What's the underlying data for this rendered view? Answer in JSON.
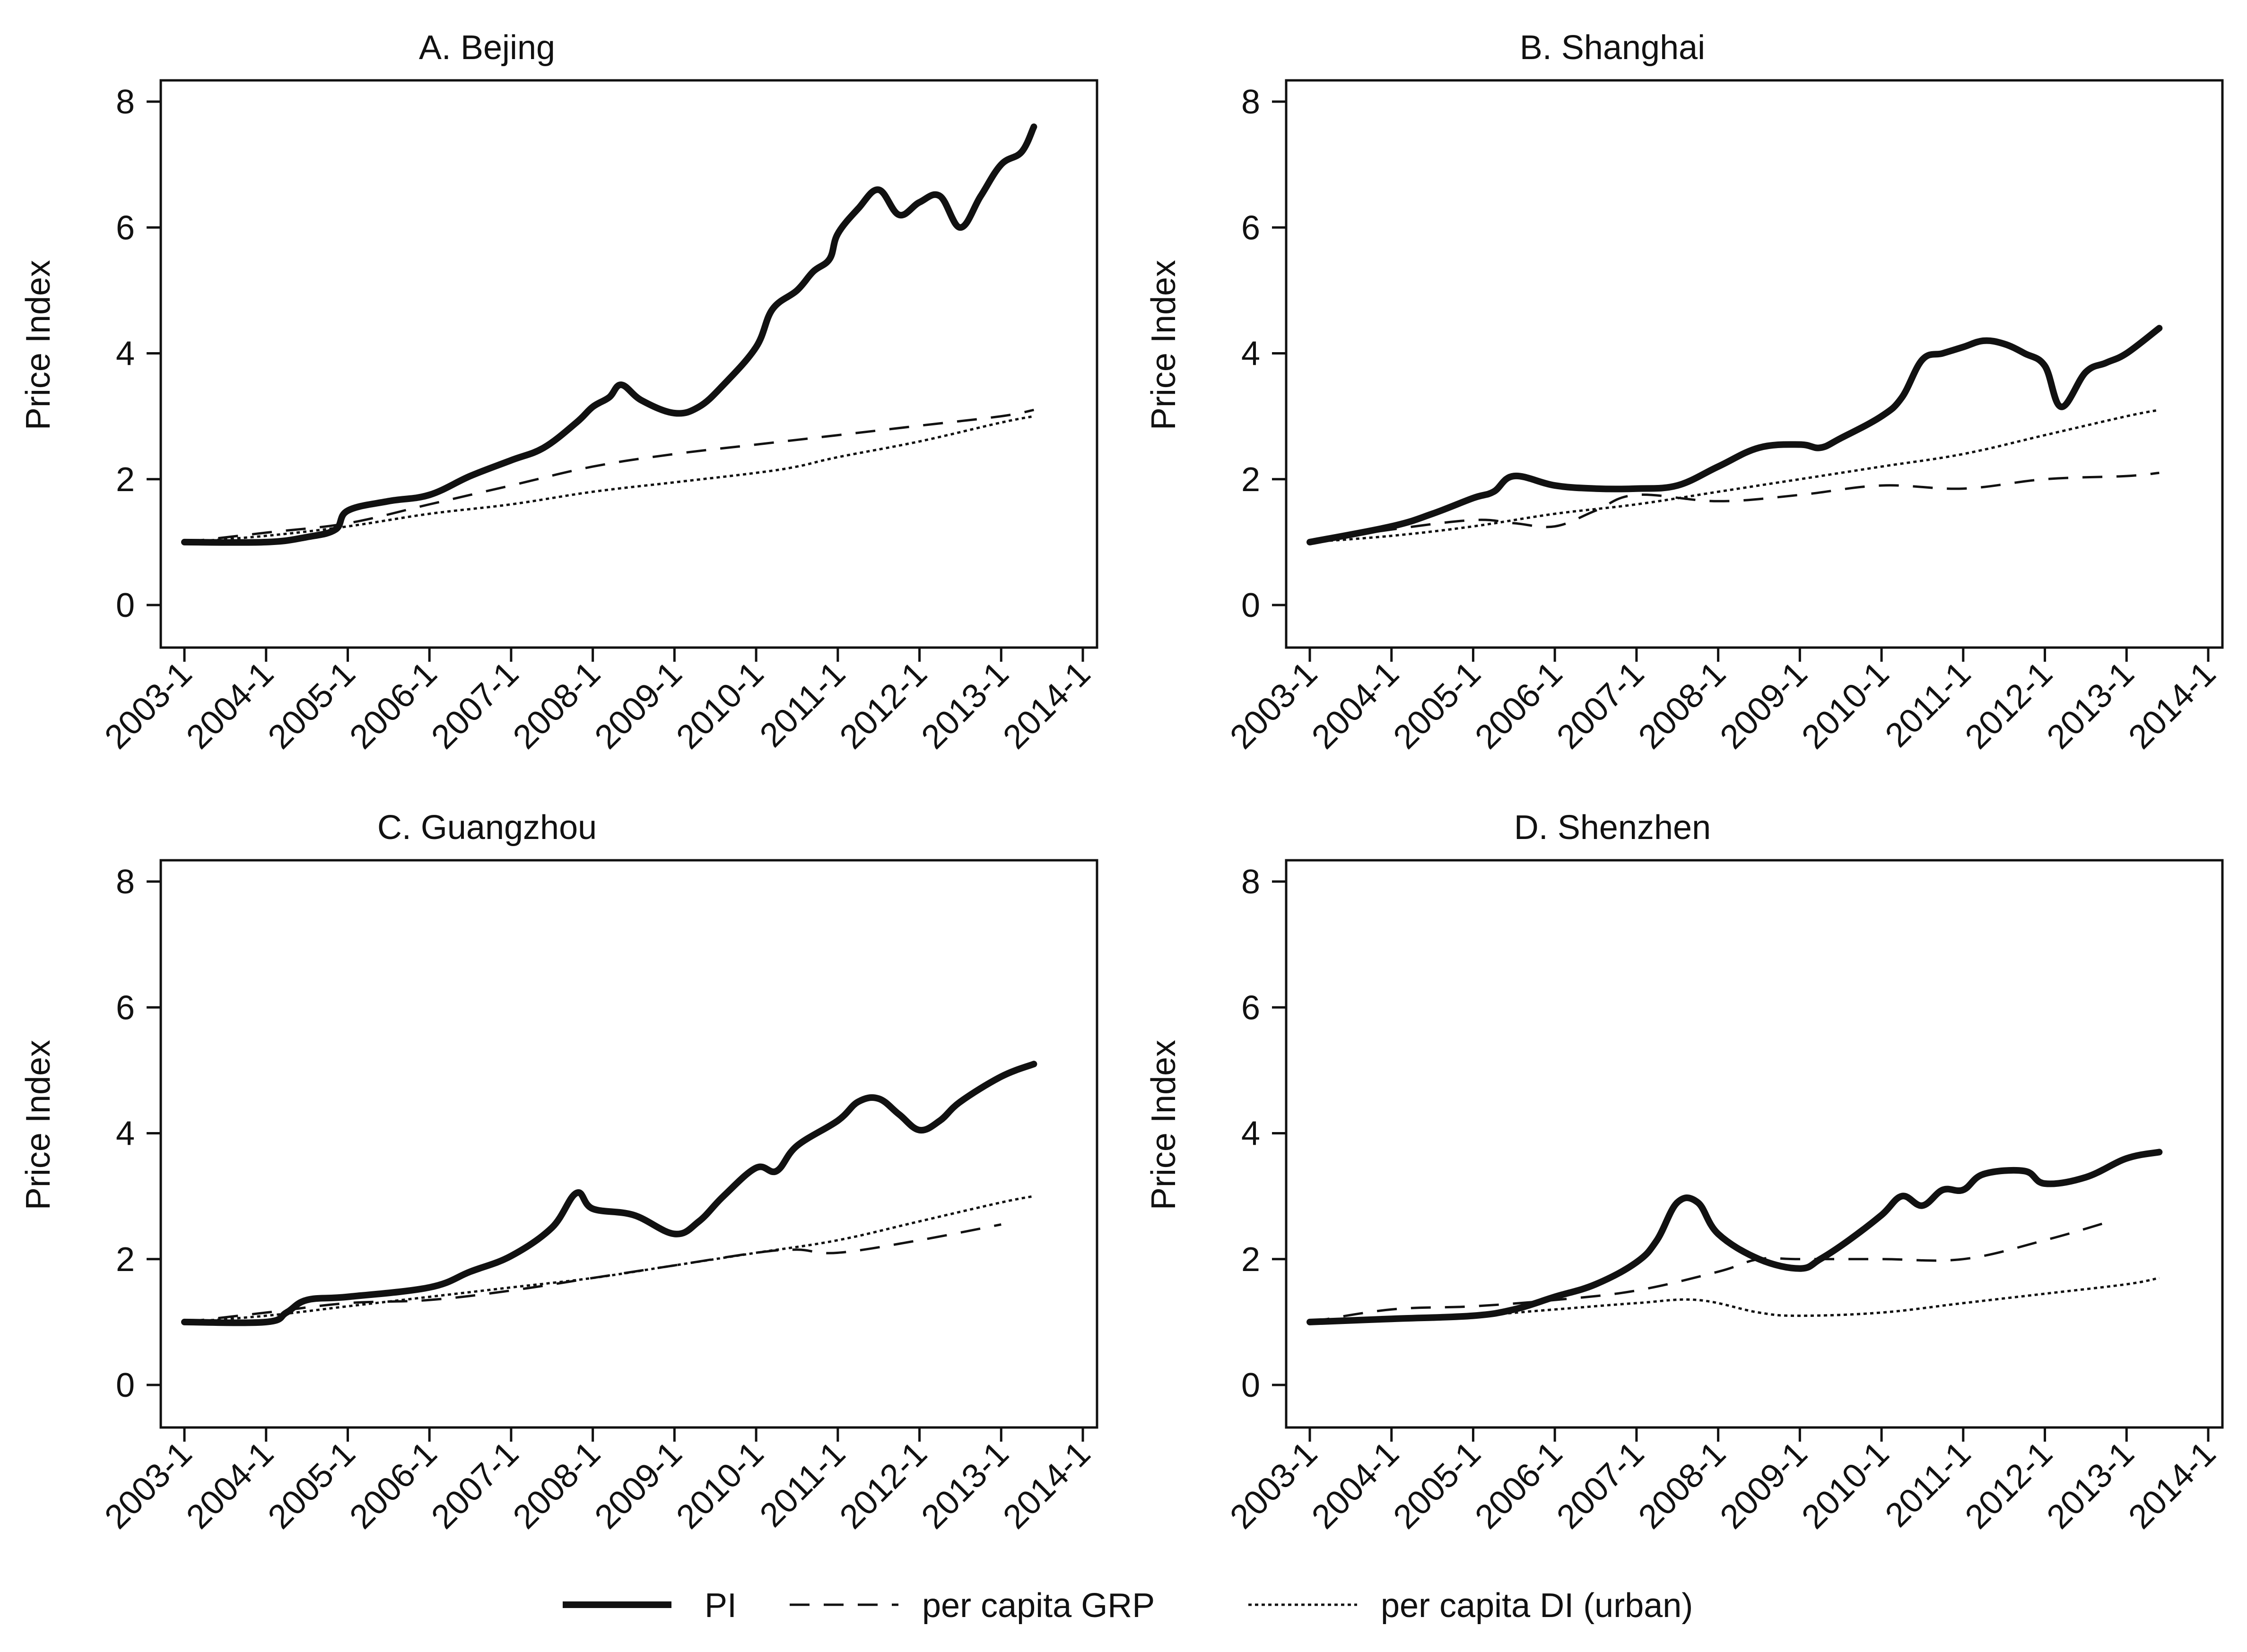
{
  "figure": {
    "legend": [
      {
        "label": "PI",
        "style": "solid"
      },
      {
        "label": "per capita GRP",
        "style": "dashed"
      },
      {
        "label": "per capita DI (urban)",
        "style": "dotted"
      }
    ]
  },
  "chart_data": [
    {
      "type": "line",
      "title": "A. Bejing",
      "ylabel": "Price Index",
      "xlabel": "",
      "ylim": [
        0,
        8
      ],
      "xlim": [
        2003.0,
        2014.0
      ],
      "yticks": [
        "0",
        "2",
        "4",
        "6",
        "8"
      ],
      "xticks": [
        "2003-1",
        "2004-1",
        "2005-1",
        "2006-1",
        "2007-1",
        "2008-1",
        "2009-1",
        "2010-1",
        "2011-1",
        "2012-1",
        "2013-1",
        "2014-1"
      ],
      "grid": false,
      "legend": "bottom",
      "series": [
        {
          "name": "PI",
          "style": "solid",
          "points": [
            [
              2003.0,
              1.0
            ],
            [
              2004.0,
              1.0
            ],
            [
              2004.5,
              1.08
            ],
            [
              2004.85,
              1.2
            ],
            [
              2005.0,
              1.5
            ],
            [
              2005.5,
              1.65
            ],
            [
              2006.0,
              1.75
            ],
            [
              2006.5,
              2.05
            ],
            [
              2007.0,
              2.3
            ],
            [
              2007.4,
              2.5
            ],
            [
              2007.8,
              2.9
            ],
            [
              2008.0,
              3.15
            ],
            [
              2008.2,
              3.3
            ],
            [
              2008.35,
              3.5
            ],
            [
              2008.6,
              3.25
            ],
            [
              2009.0,
              3.05
            ],
            [
              2009.3,
              3.15
            ],
            [
              2009.6,
              3.5
            ],
            [
              2010.0,
              4.1
            ],
            [
              2010.2,
              4.7
            ],
            [
              2010.5,
              5.0
            ],
            [
              2010.7,
              5.3
            ],
            [
              2010.9,
              5.5
            ],
            [
              2011.0,
              5.9
            ],
            [
              2011.25,
              6.3
            ],
            [
              2011.5,
              6.6
            ],
            [
              2011.75,
              6.2
            ],
            [
              2012.0,
              6.4
            ],
            [
              2012.25,
              6.5
            ],
            [
              2012.5,
              6.0
            ],
            [
              2012.75,
              6.5
            ],
            [
              2013.0,
              7.0
            ],
            [
              2013.25,
              7.2
            ],
            [
              2013.4,
              7.6
            ]
          ]
        },
        {
          "name": "per capita GRP",
          "style": "dashed",
          "points": [
            [
              2003.0,
              1.0
            ],
            [
              2004.0,
              1.15
            ],
            [
              2005.0,
              1.3
            ],
            [
              2006.0,
              1.6
            ],
            [
              2007.0,
              1.9
            ],
            [
              2008.0,
              2.2
            ],
            [
              2009.0,
              2.4
            ],
            [
              2010.0,
              2.55
            ],
            [
              2011.0,
              2.7
            ],
            [
              2012.0,
              2.85
            ],
            [
              2013.0,
              3.0
            ],
            [
              2013.4,
              3.1
            ]
          ]
        },
        {
          "name": "per capita DI (urban)",
          "style": "dotted",
          "points": [
            [
              2003.0,
              1.0
            ],
            [
              2004.0,
              1.1
            ],
            [
              2005.0,
              1.25
            ],
            [
              2006.0,
              1.45
            ],
            [
              2007.0,
              1.6
            ],
            [
              2008.0,
              1.8
            ],
            [
              2009.0,
              1.95
            ],
            [
              2010.0,
              2.1
            ],
            [
              2010.5,
              2.2
            ],
            [
              2011.0,
              2.35
            ],
            [
              2012.0,
              2.6
            ],
            [
              2013.0,
              2.9
            ],
            [
              2013.4,
              3.0
            ]
          ]
        }
      ]
    },
    {
      "type": "line",
      "title": "B. Shanghai",
      "ylabel": "Price Index",
      "xlabel": "",
      "ylim": [
        0,
        8
      ],
      "xlim": [
        2003.0,
        2014.0
      ],
      "yticks": [
        "0",
        "2",
        "4",
        "6",
        "8"
      ],
      "xticks": [
        "2003-1",
        "2004-1",
        "2005-1",
        "2006-1",
        "2007-1",
        "2008-1",
        "2009-1",
        "2010-1",
        "2011-1",
        "2012-1",
        "2013-1",
        "2014-1"
      ],
      "grid": false,
      "legend": "bottom",
      "series": [
        {
          "name": "PI",
          "style": "solid",
          "points": [
            [
              2003.0,
              1.0
            ],
            [
              2004.0,
              1.25
            ],
            [
              2004.5,
              1.45
            ],
            [
              2005.0,
              1.7
            ],
            [
              2005.25,
              1.8
            ],
            [
              2005.5,
              2.05
            ],
            [
              2006.0,
              1.9
            ],
            [
              2006.5,
              1.85
            ],
            [
              2007.0,
              1.85
            ],
            [
              2007.5,
              1.9
            ],
            [
              2008.0,
              2.2
            ],
            [
              2008.5,
              2.5
            ],
            [
              2009.0,
              2.55
            ],
            [
              2009.25,
              2.5
            ],
            [
              2009.5,
              2.65
            ],
            [
              2010.0,
              3.0
            ],
            [
              2010.25,
              3.3
            ],
            [
              2010.5,
              3.9
            ],
            [
              2010.75,
              4.0
            ],
            [
              2011.0,
              4.1
            ],
            [
              2011.25,
              4.2
            ],
            [
              2011.5,
              4.15
            ],
            [
              2011.75,
              4.0
            ],
            [
              2012.0,
              3.8
            ],
            [
              2012.2,
              3.15
            ],
            [
              2012.5,
              3.7
            ],
            [
              2012.75,
              3.85
            ],
            [
              2013.0,
              4.0
            ],
            [
              2013.4,
              4.4
            ]
          ]
        },
        {
          "name": "per capita GRP",
          "style": "dashed",
          "points": [
            [
              2003.0,
              1.0
            ],
            [
              2004.0,
              1.2
            ],
            [
              2005.0,
              1.35
            ],
            [
              2005.5,
              1.3
            ],
            [
              2006.0,
              1.25
            ],
            [
              2006.5,
              1.5
            ],
            [
              2007.0,
              1.75
            ],
            [
              2008.0,
              1.65
            ],
            [
              2009.0,
              1.75
            ],
            [
              2010.0,
              1.9
            ],
            [
              2011.0,
              1.85
            ],
            [
              2012.0,
              2.0
            ],
            [
              2013.0,
              2.05
            ],
            [
              2013.4,
              2.1
            ]
          ]
        },
        {
          "name": "per capita DI (urban)",
          "style": "dotted",
          "points": [
            [
              2003.0,
              1.0
            ],
            [
              2004.0,
              1.1
            ],
            [
              2005.0,
              1.25
            ],
            [
              2006.0,
              1.45
            ],
            [
              2007.0,
              1.6
            ],
            [
              2008.0,
              1.8
            ],
            [
              2009.0,
              2.0
            ],
            [
              2010.0,
              2.2
            ],
            [
              2011.0,
              2.4
            ],
            [
              2012.0,
              2.7
            ],
            [
              2013.0,
              3.0
            ],
            [
              2013.4,
              3.1
            ]
          ]
        }
      ]
    },
    {
      "type": "line",
      "title": "C. Guangzhou",
      "ylabel": "Price Index",
      "xlabel": "",
      "ylim": [
        0,
        8
      ],
      "xlim": [
        2003.0,
        2014.0
      ],
      "yticks": [
        "0",
        "2",
        "4",
        "6",
        "8"
      ],
      "xticks": [
        "2003-1",
        "2004-1",
        "2005-1",
        "2006-1",
        "2007-1",
        "2008-1",
        "2009-1",
        "2010-1",
        "2011-1",
        "2012-1",
        "2013-1",
        "2014-1"
      ],
      "grid": false,
      "legend": "bottom",
      "series": [
        {
          "name": "PI",
          "style": "solid",
          "points": [
            [
              2003.0,
              1.0
            ],
            [
              2004.0,
              1.0
            ],
            [
              2004.25,
              1.15
            ],
            [
              2004.5,
              1.35
            ],
            [
              2005.0,
              1.4
            ],
            [
              2006.0,
              1.55
            ],
            [
              2006.5,
              1.8
            ],
            [
              2007.0,
              2.05
            ],
            [
              2007.5,
              2.5
            ],
            [
              2007.8,
              3.05
            ],
            [
              2008.0,
              2.8
            ],
            [
              2008.5,
              2.7
            ],
            [
              2009.0,
              2.4
            ],
            [
              2009.3,
              2.6
            ],
            [
              2009.6,
              3.0
            ],
            [
              2010.0,
              3.45
            ],
            [
              2010.25,
              3.4
            ],
            [
              2010.5,
              3.8
            ],
            [
              2011.0,
              4.2
            ],
            [
              2011.25,
              4.5
            ],
            [
              2011.5,
              4.55
            ],
            [
              2011.75,
              4.3
            ],
            [
              2012.0,
              4.05
            ],
            [
              2012.25,
              4.2
            ],
            [
              2012.5,
              4.5
            ],
            [
              2013.0,
              4.9
            ],
            [
              2013.4,
              5.1
            ]
          ]
        },
        {
          "name": "per capita GRP",
          "style": "dashed",
          "points": [
            [
              2003.0,
              1.0
            ],
            [
              2004.0,
              1.15
            ],
            [
              2005.0,
              1.3
            ],
            [
              2006.0,
              1.35
            ],
            [
              2007.0,
              1.5
            ],
            [
              2008.0,
              1.7
            ],
            [
              2009.0,
              1.9
            ],
            [
              2010.0,
              2.1
            ],
            [
              2010.5,
              2.15
            ],
            [
              2011.0,
              2.1
            ],
            [
              2012.0,
              2.3
            ],
            [
              2013.0,
              2.55
            ]
          ]
        },
        {
          "name": "per capita DI (urban)",
          "style": "dotted",
          "points": [
            [
              2003.0,
              1.0
            ],
            [
              2004.0,
              1.1
            ],
            [
              2005.0,
              1.25
            ],
            [
              2006.0,
              1.4
            ],
            [
              2007.0,
              1.55
            ],
            [
              2008.0,
              1.7
            ],
            [
              2009.0,
              1.9
            ],
            [
              2010.0,
              2.1
            ],
            [
              2011.0,
              2.3
            ],
            [
              2012.0,
              2.6
            ],
            [
              2013.0,
              2.9
            ],
            [
              2013.4,
              3.0
            ]
          ]
        }
      ]
    },
    {
      "type": "line",
      "title": "D. Shenzhen",
      "ylabel": "Price Index",
      "xlabel": "",
      "ylim": [
        0,
        8
      ],
      "xlim": [
        2003.0,
        2014.0
      ],
      "yticks": [
        "0",
        "2",
        "4",
        "6",
        "8"
      ],
      "xticks": [
        "2003-1",
        "2004-1",
        "2005-1",
        "2006-1",
        "2007-1",
        "2008-1",
        "2009-1",
        "2010-1",
        "2011-1",
        "2012-1",
        "2013-1",
        "2014-1"
      ],
      "grid": false,
      "legend": "bottom",
      "series": [
        {
          "name": "PI",
          "style": "solid",
          "points": [
            [
              2003.0,
              1.0
            ],
            [
              2004.0,
              1.05
            ],
            [
              2005.0,
              1.1
            ],
            [
              2005.5,
              1.2
            ],
            [
              2006.0,
              1.4
            ],
            [
              2006.5,
              1.6
            ],
            [
              2007.0,
              1.95
            ],
            [
              2007.25,
              2.3
            ],
            [
              2007.5,
              2.9
            ],
            [
              2007.75,
              2.9
            ],
            [
              2008.0,
              2.4
            ],
            [
              2008.5,
              2.0
            ],
            [
              2009.0,
              1.85
            ],
            [
              2009.25,
              2.0
            ],
            [
              2009.6,
              2.3
            ],
            [
              2010.0,
              2.7
            ],
            [
              2010.25,
              3.0
            ],
            [
              2010.5,
              2.85
            ],
            [
              2010.75,
              3.1
            ],
            [
              2011.0,
              3.1
            ],
            [
              2011.25,
              3.35
            ],
            [
              2011.75,
              3.4
            ],
            [
              2012.0,
              3.2
            ],
            [
              2012.5,
              3.3
            ],
            [
              2013.0,
              3.6
            ],
            [
              2013.4,
              3.7
            ]
          ]
        },
        {
          "name": "per capita GRP",
          "style": "dashed",
          "points": [
            [
              2003.0,
              1.0
            ],
            [
              2004.0,
              1.2
            ],
            [
              2005.0,
              1.25
            ],
            [
              2006.0,
              1.35
            ],
            [
              2007.0,
              1.5
            ],
            [
              2008.0,
              1.8
            ],
            [
              2008.5,
              2.0
            ],
            [
              2009.0,
              2.0
            ],
            [
              2010.0,
              2.0
            ],
            [
              2011.0,
              2.0
            ],
            [
              2012.0,
              2.3
            ],
            [
              2012.8,
              2.6
            ]
          ]
        },
        {
          "name": "per capita DI (urban)",
          "style": "dotted",
          "points": [
            [
              2003.0,
              1.0
            ],
            [
              2004.0,
              1.05
            ],
            [
              2005.0,
              1.1
            ],
            [
              2006.0,
              1.2
            ],
            [
              2007.0,
              1.3
            ],
            [
              2007.75,
              1.35
            ],
            [
              2008.5,
              1.15
            ],
            [
              2009.0,
              1.1
            ],
            [
              2010.0,
              1.15
            ],
            [
              2011.0,
              1.3
            ],
            [
              2012.0,
              1.45
            ],
            [
              2013.0,
              1.6
            ],
            [
              2013.4,
              1.7
            ]
          ]
        }
      ]
    }
  ]
}
